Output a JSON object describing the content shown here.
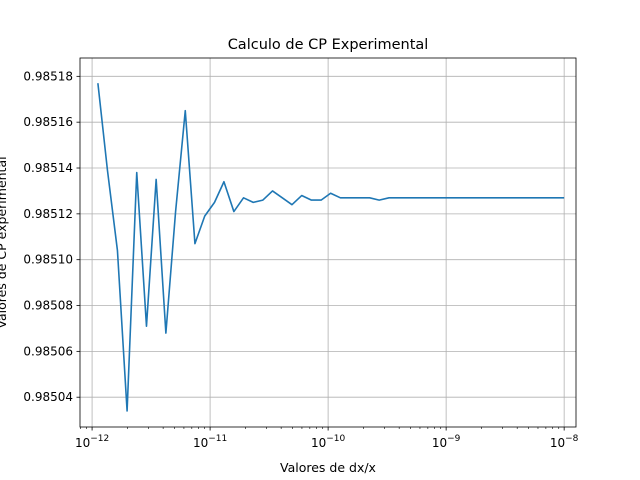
{
  "chart_data": {
    "type": "line",
    "title": "Calculo de CP Experimental",
    "xlabel": "Valores de dx/x",
    "ylabel": "Valores de CP experimental",
    "xscale": "log",
    "xlim": [
      7.9e-13,
      1.26e-08
    ],
    "ylim": [
      0.985027,
      0.985188
    ],
    "grid": true,
    "x_ticks": [
      1e-12,
      1e-11,
      1e-10,
      1e-09,
      1e-08
    ],
    "x_tick_labels": [
      "10−12",
      "10−11",
      "10−10",
      "10−9",
      "10−8"
    ],
    "y_ticks": [
      0.98504,
      0.98506,
      0.98508,
      0.9851,
      0.98512,
      0.98514,
      0.98516,
      0.98518
    ],
    "y_tick_labels": [
      "0.98504",
      "0.98506",
      "0.98508",
      "0.98510",
      "0.98512",
      "0.98514",
      "0.98516",
      "0.98518"
    ],
    "line_color": "#1f77b4",
    "series": [
      {
        "x": [
          1.12e-12,
          1.35e-12,
          1.64e-12,
          1.98e-12,
          2.39e-12,
          2.89e-12,
          3.49e-12,
          4.22e-12,
          5.1e-12,
          6.16e-12,
          7.44e-12,
          9e-12,
          1.09e-11,
          1.31e-11,
          1.59e-11,
          1.92e-11,
          2.32e-11,
          2.8e-11,
          3.38e-11,
          4.09e-11,
          4.94e-11,
          5.97e-11,
          7.22e-11,
          8.72e-11,
          1.05e-10,
          1.27e-10,
          1.54e-10,
          1.86e-10,
          2.25e-10,
          2.71e-10,
          3.28e-10,
          3.96e-10,
          4.79e-10,
          5.79e-10,
          7e-10,
          8.46e-10,
          1.02e-09,
          1.24e-09,
          1.49e-09,
          1.8e-09,
          2.18e-09,
          2.63e-09,
          3.18e-09,
          3.85e-09,
          4.65e-09,
          5.62e-09,
          6.79e-09,
          8.2e-09,
          1e-08
        ],
        "y": [
          0.985177,
          0.985139,
          0.985104,
          0.985034,
          0.985138,
          0.985071,
          0.985135,
          0.985068,
          0.985121,
          0.985165,
          0.985107,
          0.985119,
          0.985125,
          0.985134,
          0.985121,
          0.985127,
          0.985125,
          0.985126,
          0.98513,
          0.985127,
          0.985124,
          0.985128,
          0.985126,
          0.985126,
          0.985129,
          0.985127,
          0.985127,
          0.985127,
          0.985127,
          0.985126,
          0.985127,
          0.985127,
          0.985127,
          0.985127,
          0.985127,
          0.985127,
          0.985127,
          0.985127,
          0.985127,
          0.985127,
          0.985127,
          0.985127,
          0.985127,
          0.985127,
          0.985127,
          0.985127,
          0.985127,
          0.985127,
          0.985127
        ]
      }
    ]
  }
}
